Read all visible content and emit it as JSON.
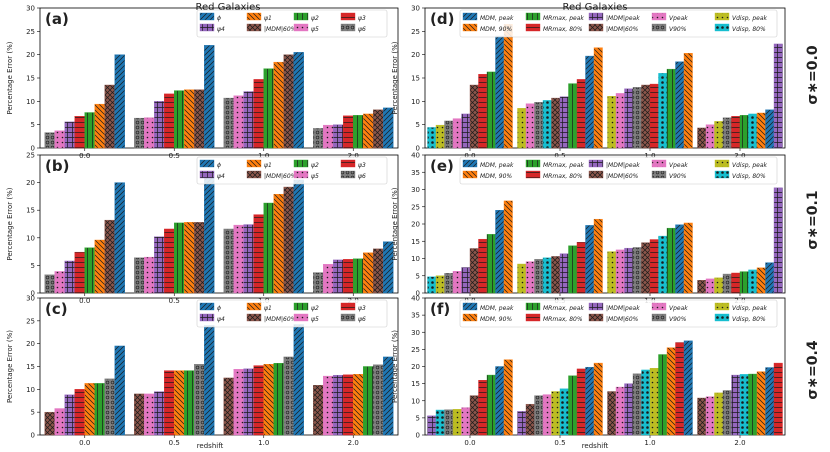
{
  "header": {
    "left_title": "Red Galaxies",
    "right_title": "Red Galaxies",
    "xlabel": "redshift",
    "ylabel": "Percentage Error (%)"
  },
  "row_labels": [
    "σ∗=0.0",
    "σ∗=0.1",
    "σ∗=0.4"
  ],
  "colors": {
    "c0": "#1f77b4",
    "c1": "#ff7f0e",
    "c2": "#2ca02c",
    "c3": "#d62728",
    "c4": "#9467bd",
    "c5": "#8c564b",
    "c6": "#e377c2",
    "c7": "#7f7f7f",
    "c8": "#bcbd22",
    "c9": "#17becf"
  },
  "left_legend": [
    {
      "label": "ϕ",
      "color": "#1f77b4",
      "hatch": "diag"
    },
    {
      "label": "ψ1",
      "color": "#ff7f0e",
      "hatch": "anti"
    },
    {
      "label": "ψ2",
      "color": "#2ca02c",
      "hatch": "vert"
    },
    {
      "label": "ψ3",
      "color": "#d62728",
      "hatch": "horiz"
    },
    {
      "label": "ψ4",
      "color": "#9467bd",
      "hatch": "grid"
    },
    {
      "label": "|MDM|60%",
      "color": "#8c564b",
      "hatch": "cross"
    },
    {
      "label": "ψ5",
      "color": "#e377c2",
      "hatch": "dots"
    },
    {
      "label": "ψ6",
      "color": "#7f7f7f",
      "hatch": "circles"
    }
  ],
  "right_legend": [
    {
      "label": "MDM, peak",
      "color": "#1f77b4",
      "hatch": "diag"
    },
    {
      "label": "MDM, 90%",
      "color": "#ff7f0e",
      "hatch": "anti"
    },
    {
      "label": "MRmax, peak",
      "color": "#2ca02c",
      "hatch": "vert"
    },
    {
      "label": "MRmax, 80%",
      "color": "#d62728",
      "hatch": "horiz"
    },
    {
      "label": "|MDM|peak",
      "color": "#9467bd",
      "hatch": "grid"
    },
    {
      "label": "|MDM|60%",
      "color": "#8c564b",
      "hatch": "cross"
    },
    {
      "label": "Vpeak",
      "color": "#e377c2",
      "hatch": "dots"
    },
    {
      "label": "V90%",
      "color": "#7f7f7f",
      "hatch": "circles"
    },
    {
      "label": "Vdisp, peak",
      "color": "#bcbd22",
      "hatch": "dots"
    },
    {
      "label": "Vdisp, 80%",
      "color": "#17becf",
      "hatch": "bigdots"
    }
  ],
  "chart_data": [
    {
      "panel": "(a)",
      "type": "bar",
      "categories": [
        "0.0",
        "0.5",
        "1.0",
        "2.0"
      ],
      "ylim": [
        0,
        30
      ],
      "yticks": [
        0,
        5,
        10,
        15,
        20,
        25,
        30
      ],
      "bars": [
        [
          3.3,
          3.7,
          5.6,
          6.8,
          7.6,
          9.4,
          13.5,
          20.0
        ],
        [
          6.4,
          6.5,
          10.0,
          11.6,
          12.3,
          12.5,
          12.5,
          22.0
        ],
        [
          10.7,
          11.2,
          12.1,
          14.7,
          17.0,
          18.4,
          20.0,
          20.5
        ],
        [
          4.2,
          4.9,
          5.0,
          6.9,
          7.0,
          7.3,
          8.2,
          8.6
        ]
      ],
      "bar_styles": [
        "circles",
        "dots",
        "grid",
        "horiz",
        "vert",
        "anti",
        "cross",
        "diag"
      ]
    },
    {
      "panel": "(b)",
      "type": "bar",
      "categories": [
        "0.0",
        "0.5",
        "1.0",
        "2.0"
      ],
      "ylim": [
        0,
        25
      ],
      "yticks": [
        0,
        5,
        10,
        15,
        20,
        25
      ],
      "bars": [
        [
          3.3,
          3.9,
          5.8,
          7.4,
          8.2,
          9.6,
          13.2,
          20.0
        ],
        [
          6.4,
          6.5,
          10.2,
          11.6,
          12.7,
          12.8,
          12.8,
          22.0
        ],
        [
          11.6,
          12.3,
          12.4,
          14.2,
          16.3,
          17.9,
          19.2,
          20.5
        ],
        [
          3.7,
          5.2,
          6.0,
          6.1,
          6.2,
          7.3,
          8.0,
          9.3
        ]
      ],
      "bar_styles": [
        "circles",
        "dots",
        "grid",
        "horiz",
        "vert",
        "anti",
        "cross",
        "diag"
      ]
    },
    {
      "panel": "(c)",
      "type": "bar",
      "categories": [
        "0.0",
        "0.5",
        "1.0",
        "2.0"
      ],
      "ylim": [
        0,
        30
      ],
      "yticks": [
        0,
        5,
        10,
        15,
        20,
        25,
        30
      ],
      "bars": [
        [
          5.0,
          5.8,
          8.8,
          10.0,
          11.3,
          11.3,
          12.3,
          19.5
        ],
        [
          9.0,
          9.0,
          9.5,
          14.1,
          14.1,
          14.1,
          15.5,
          24.0
        ],
        [
          12.5,
          14.4,
          14.5,
          15.2,
          15.5,
          15.7,
          17.1,
          24.2
        ],
        [
          10.9,
          12.9,
          13.1,
          13.2,
          13.3,
          15.0,
          15.4,
          17.1
        ]
      ],
      "bar_styles": [
        "cross",
        "dots",
        "grid",
        "horiz",
        "anti",
        "vert",
        "circles",
        "diag"
      ]
    },
    {
      "panel": "(d)",
      "type": "bar",
      "categories": [
        "0.0",
        "0.5",
        "1.0",
        "2.0"
      ],
      "ylim": [
        0,
        30
      ],
      "yticks": [
        0,
        5,
        10,
        15,
        20,
        25,
        30
      ],
      "bars": [
        [
          4.4,
          4.9,
          5.8,
          6.3,
          7.3,
          13.5,
          15.8,
          16.3,
          24.0,
          26.5
        ],
        [
          8.5,
          9.5,
          9.8,
          10.2,
          10.7,
          11.0,
          13.8,
          14.7,
          19.7,
          21.5
        ],
        [
          11.1,
          11.7,
          12.7,
          13.0,
          13.5,
          13.7,
          16.0,
          16.9,
          18.5,
          20.3
        ],
        [
          4.3,
          5.0,
          5.7,
          6.5,
          6.8,
          7.0,
          7.3,
          7.5,
          8.2,
          22.3
        ]
      ],
      "order": [
        [
          9,
          8,
          7,
          6,
          4,
          5,
          3,
          2,
          0,
          1
        ],
        [
          8,
          6,
          7,
          9,
          5,
          4,
          2,
          3,
          0,
          1
        ],
        [
          8,
          6,
          4,
          7,
          5,
          3,
          9,
          2,
          0,
          1
        ],
        [
          5,
          6,
          8,
          7,
          3,
          2,
          9,
          1,
          0,
          4
        ]
      ]
    },
    {
      "panel": "(e)",
      "type": "bar",
      "categories": [
        "0.0",
        "0.5",
        "1.0",
        "2.0"
      ],
      "ylim": [
        0,
        40
      ],
      "yticks": [
        0,
        5,
        10,
        15,
        20,
        25,
        30,
        35,
        40
      ],
      "bars": [
        [
          4.7,
          5.0,
          5.7,
          6.3,
          7.4,
          12.9,
          15.6,
          17.0,
          24.0,
          26.7
        ],
        [
          8.4,
          9.1,
          9.8,
          10.2,
          10.6,
          11.4,
          13.7,
          14.7,
          19.6,
          21.4
        ],
        [
          12.0,
          12.5,
          13.0,
          13.2,
          14.6,
          15.5,
          16.5,
          18.8,
          19.8,
          20.3
        ],
        [
          3.7,
          4.1,
          4.4,
          5.5,
          5.8,
          6.2,
          6.7,
          7.3,
          8.8,
          30.5
        ]
      ],
      "order": [
        [
          9,
          8,
          7,
          6,
          4,
          5,
          3,
          2,
          0,
          1
        ],
        [
          8,
          6,
          7,
          9,
          5,
          4,
          2,
          3,
          0,
          1
        ],
        [
          8,
          6,
          4,
          7,
          5,
          3,
          9,
          2,
          0,
          1
        ],
        [
          5,
          6,
          8,
          7,
          3,
          2,
          9,
          1,
          0,
          4
        ]
      ]
    },
    {
      "panel": "(f)",
      "type": "bar",
      "categories": [
        "0.0",
        "0.5",
        "1.0",
        "2.0"
      ],
      "ylim": [
        0,
        40
      ],
      "yticks": [
        0,
        5,
        10,
        15,
        20,
        25,
        30,
        35,
        40
      ],
      "bars": [
        [
          5.6,
          7.3,
          7.4,
          7.5,
          8.0,
          11.5,
          16.0,
          17.5,
          20.0,
          22.0
        ],
        [
          6.9,
          9.0,
          11.5,
          11.8,
          12.7,
          13.5,
          17.3,
          19.3,
          19.8,
          21.0
        ],
        [
          12.7,
          14.0,
          15.0,
          17.9,
          19.0,
          19.5,
          23.5,
          25.5,
          27.0,
          27.5
        ],
        [
          10.8,
          11.2,
          12.3,
          13.0,
          17.5,
          17.7,
          17.8,
          18.5,
          19.7,
          21.0
        ]
      ],
      "order": [
        [
          4,
          9,
          7,
          8,
          6,
          5,
          3,
          2,
          0,
          1
        ],
        [
          4,
          5,
          7,
          6,
          8,
          9,
          2,
          3,
          0,
          1
        ],
        [
          5,
          6,
          4,
          7,
          9,
          8,
          2,
          1,
          3,
          0
        ],
        [
          5,
          6,
          8,
          7,
          4,
          9,
          2,
          1,
          0,
          3
        ]
      ]
    }
  ]
}
